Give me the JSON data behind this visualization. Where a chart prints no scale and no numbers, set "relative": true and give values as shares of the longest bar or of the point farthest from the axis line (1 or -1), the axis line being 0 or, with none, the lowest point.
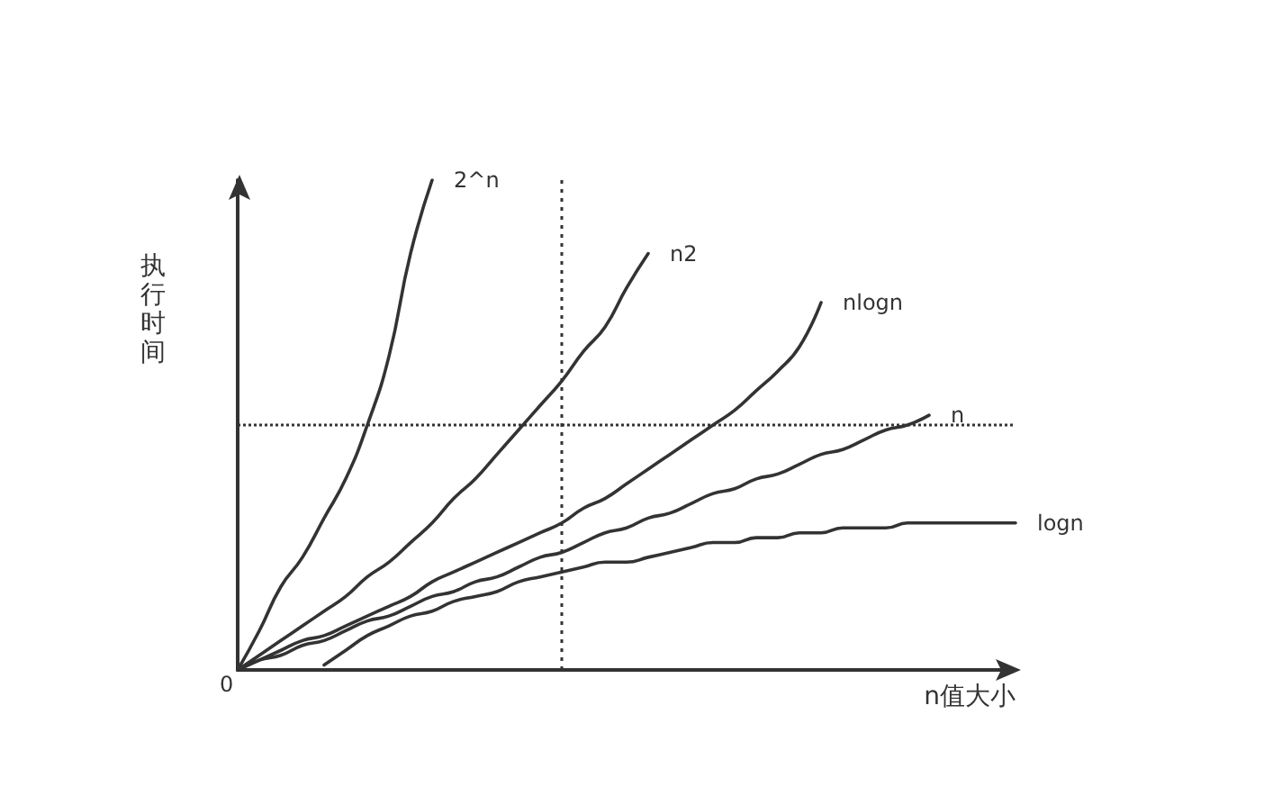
{
  "chart_data": {
    "type": "line",
    "relative": true,
    "xlabel": "n值大小",
    "ylabel": "执行时间",
    "tick_labels": false,
    "marker": "none",
    "line_style": "solid",
    "grid": false,
    "legend": false,
    "annotations": [
      "0"
    ],
    "categories": [
      null,
      null,
      null,
      null,
      null,
      null,
      null,
      null,
      null,
      null,
      null,
      null,
      null,
      null,
      null,
      null,
      null,
      null,
      null,
      null,
      null,
      null,
      null,
      null,
      null,
      null,
      null,
      null,
      null,
      null,
      null,
      null,
      null,
      null,
      null,
      null,
      null
    ],
    "series": [
      {
        "name": "2^n",
        "color": "#333333",
        "values": [
          0,
          0.08,
          0.17,
          0.23,
          0.31,
          0.39,
          0.5,
          0.64,
          0.85,
          1,
          null,
          null,
          null,
          null,
          null,
          null,
          null,
          null,
          null,
          null,
          null,
          null,
          null,
          null,
          null,
          null,
          null,
          null,
          null,
          null,
          null,
          null,
          null,
          null,
          null,
          null,
          null
        ]
      },
      {
        "name": "n2",
        "color": "#333333",
        "values": [
          0,
          0.03,
          0.06,
          0.09,
          0.12,
          0.15,
          0.19,
          0.22,
          0.26,
          0.3,
          0.35,
          0.39,
          0.44,
          0.49,
          0.54,
          0.59,
          0.65,
          0.7,
          0.78,
          0.85,
          null,
          null,
          null,
          null,
          null,
          null,
          null,
          null,
          null,
          null,
          null,
          null,
          null,
          null,
          null,
          null,
          null
        ]
      },
      {
        "name": "nlogn",
        "color": "#333333",
        "values": [
          0,
          0.02,
          0.04,
          0.06,
          0.07,
          0.09,
          0.11,
          0.13,
          0.15,
          0.18,
          0.2,
          0.22,
          0.24,
          0.26,
          0.28,
          0.3,
          0.33,
          0.35,
          0.38,
          0.41,
          0.44,
          0.47,
          0.5,
          0.53,
          0.57,
          0.61,
          0.66,
          0.75,
          null,
          null,
          null,
          null,
          null,
          null,
          null,
          null,
          null
        ]
      },
      {
        "name": "n",
        "color": "#333333",
        "values": [
          0,
          0.02,
          0.03,
          0.05,
          0.06,
          0.08,
          0.1,
          0.11,
          0.13,
          0.15,
          0.16,
          0.18,
          0.19,
          0.21,
          0.23,
          0.24,
          0.26,
          0.28,
          0.29,
          0.31,
          0.32,
          0.34,
          0.36,
          0.37,
          0.39,
          0.4,
          0.42,
          0.44,
          0.45,
          0.47,
          0.49,
          0.5,
          0.52,
          null,
          null,
          null,
          null
        ]
      },
      {
        "name": "logn",
        "color": "#333333",
        "values": [
          null,
          null,
          null,
          null,
          0.01,
          0.04,
          0.07,
          0.09,
          0.11,
          0.12,
          0.14,
          0.15,
          0.16,
          0.18,
          0.19,
          0.2,
          0.21,
          0.22,
          0.22,
          0.23,
          0.24,
          0.25,
          0.26,
          0.26,
          0.27,
          0.27,
          0.28,
          0.28,
          0.29,
          0.29,
          0.29,
          0.3,
          0.3,
          0.3,
          0.3,
          0.3,
          0.3
        ]
      }
    ],
    "ref_lines": [
      {
        "axis": "y",
        "value": 0.5,
        "line_style": "dotted",
        "color": "#333333"
      }
    ]
  }
}
